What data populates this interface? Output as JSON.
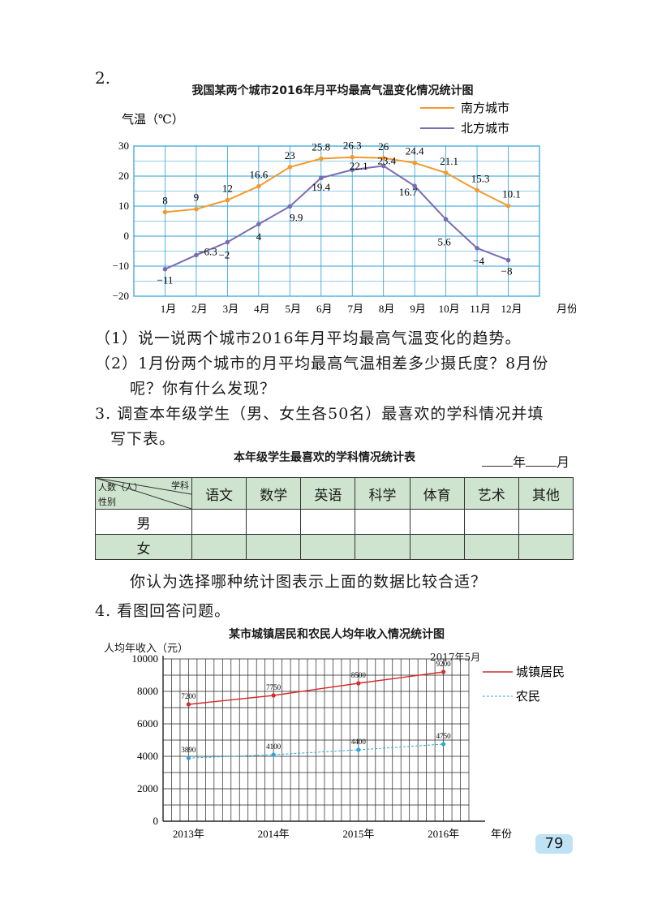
{
  "q2": {
    "number": "2.",
    "title": "我国某两个城市2016年月平均最高气温变化情况统计图",
    "ylabel": "气温（℃）",
    "q1": "（1）说一说两个城市2016年月平均最高气温变化的趋势。",
    "q2_line1": "（2）1月份两个城市的月平均最高气温相差多少摄氏度？8月份",
    "q2_line2": "呢？你有什么发现？"
  },
  "q3": {
    "line1": "3. 调查本年级学生（男、女生各50名）最喜欢的学科情况并填",
    "line2": "写下表。",
    "table_title": "本年级学生最喜欢的学科情况统计表",
    "year_label": "年",
    "month_label": "月",
    "corner_top": "学科",
    "corner_mid": "人数（人）",
    "corner_bottom": "性别",
    "subjects": [
      "语文",
      "数学",
      "英语",
      "科学",
      "体育",
      "艺术",
      "其他"
    ],
    "rows": [
      "男",
      "女"
    ],
    "question": "你认为选择哪种统计图表示上面的数据比较合适？"
  },
  "q4": {
    "line1": "4. 看图回答问题。",
    "title": "某市城镇居民和农民人均年收入情况统计图",
    "ylabel": "人均年收入（元）",
    "date": "2017年5月"
  },
  "page_number": "79",
  "chart_data": [
    {
      "type": "line",
      "title": "我国某两个城市2016年月平均最高气温变化情况统计图",
      "ylabel": "气温（℃）",
      "xlabel": "月份",
      "categories": [
        "1月",
        "2月",
        "3月",
        "4月",
        "5月",
        "6月",
        "7月",
        "8月",
        "9月",
        "10月",
        "11月",
        "12月"
      ],
      "ylim": [
        -20,
        30
      ],
      "yticks": [
        -20,
        -10,
        0,
        10,
        20,
        30
      ],
      "grid": true,
      "legend_position": "top-right",
      "series": [
        {
          "name": "南方城市",
          "color": "#f39a2e",
          "values": [
            8,
            9,
            12,
            16.6,
            23,
            25.8,
            26.3,
            26,
            24.4,
            21.1,
            15.3,
            10.1
          ],
          "labels": [
            "8",
            "9",
            "12",
            "16.6",
            "23",
            "25.8",
            "26.3",
            "26",
            "24.4",
            "21.1",
            "15.3",
            "10.1"
          ]
        },
        {
          "name": "北方城市",
          "color": "#7b6bb3",
          "values": [
            -11,
            -6.3,
            -2,
            4,
            9.9,
            19.4,
            22.1,
            23.4,
            16.7,
            5.6,
            -4,
            -8
          ],
          "labels": [
            "−11",
            "−6.3",
            "−2",
            "4",
            "9.9",
            "19.4",
            "22.1",
            "23.4",
            "16.7",
            "5.6",
            "−4",
            "−8"
          ]
        }
      ]
    },
    {
      "type": "line",
      "title": "某市城镇居民和农民人均年收入情况统计图",
      "ylabel": "人均年收入（元）",
      "xlabel": "年份",
      "categories": [
        "2013年",
        "2014年",
        "2015年",
        "2016年"
      ],
      "ylim": [
        0,
        10000
      ],
      "yticks": [
        0,
        2000,
        4000,
        6000,
        8000,
        10000
      ],
      "grid": true,
      "legend_position": "right",
      "series": [
        {
          "name": "城镇居民",
          "color": "#d42a2a",
          "dashed": false,
          "values": [
            7200,
            7750,
            8500,
            9200
          ],
          "labels": [
            "7200",
            "7750",
            "8500",
            "9200"
          ]
        },
        {
          "name": "农民",
          "color": "#2ea7d8",
          "dashed": true,
          "values": [
            3890,
            4100,
            4400,
            4750
          ],
          "labels": [
            "3890",
            "4100",
            "4400",
            "4750"
          ]
        }
      ]
    }
  ]
}
